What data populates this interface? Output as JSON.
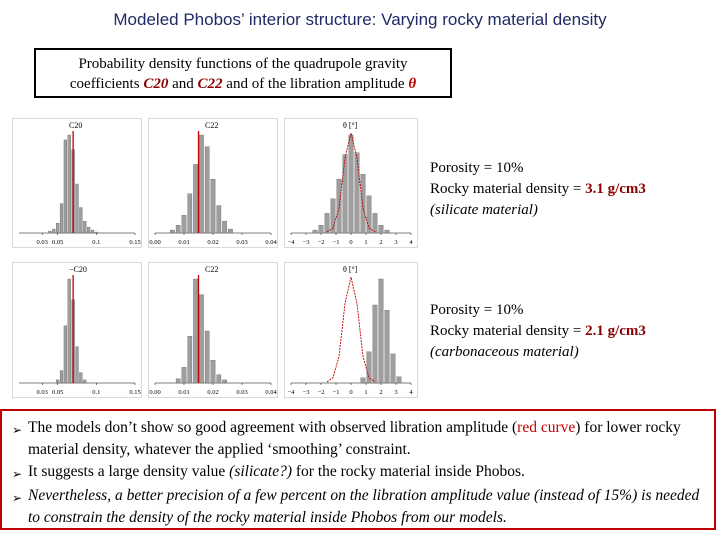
{
  "title": "Modeled Phobos’ interior structure: Varying rocky material density",
  "topbox": {
    "line1": "Probability density functions of the quadrupole gravity",
    "prefix": "coefficients ",
    "c20": "C20",
    "and": " and ",
    "c22": "C22",
    "mid": " and of the libration amplitude ",
    "theta": "θ"
  },
  "rows": [
    {
      "porosity": "Porosity = 10%",
      "density_label": "Rocky material density = ",
      "density_value": "3.1 g/cm3",
      "material": "(silicate material)",
      "panel_titles": [
        "C20",
        "C22",
        "θ [°]"
      ]
    },
    {
      "porosity": "Porosity = 10%",
      "density_label": "Rocky material density = ",
      "density_value": "2.1 g/cm3",
      "material": "(carbonaceous material)",
      "panel_titles": [
        "−C20",
        "C22",
        "θ [°]"
      ]
    }
  ],
  "axes": {
    "c20_ticks": [
      "0.03",
      "0.05",
      "0.1",
      "0.15"
    ],
    "c22_ticks": [
      "0.00",
      "0.01",
      "0.02",
      "0.03",
      "0.04"
    ],
    "theta_ticks": [
      "−4",
      "−3",
      "−2",
      "−1",
      "0",
      "1",
      "2",
      "3",
      "4"
    ]
  },
  "bullets": [
    {
      "a": "The models don’t show so good agreement with observed libration amplitude (",
      "red": "red curve",
      "b": ") for lower rocky material density, whatever the applied ‘smoothing’ constraint."
    },
    {
      "a": "It suggests a large density value ",
      "it": "(silicate?)",
      "b": " for the rocky material inside Phobos."
    },
    {
      "it": "Nevertheless, a better precision of a few percent on the libration amplitude value (instead of 15%) is needed to constrain the density of the rocky material inside Phobos from our models."
    }
  ],
  "colors": {
    "title": "#1f2a66",
    "accent": "#c00000",
    "density": "#8b0000",
    "bar": "#9e9e9e"
  },
  "chart_data": [
    {
      "type": "bar",
      "title": "C20",
      "panel": "row1-col1",
      "xlim": [
        0.0,
        0.15
      ],
      "observed_value": 0.07,
      "bins": [
        0.04,
        0.045,
        0.05,
        0.055,
        0.06,
        0.065,
        0.07,
        0.075,
        0.08,
        0.085,
        0.09,
        0.095,
        0.1
      ],
      "values": [
        2,
        4,
        10,
        30,
        95,
        100,
        85,
        50,
        26,
        12,
        6,
        3,
        1
      ]
    },
    {
      "type": "bar",
      "title": "C22",
      "panel": "row1-col2",
      "xlim": [
        0.0,
        0.04
      ],
      "observed_value": 0.015,
      "bins": [
        0.006,
        0.008,
        0.01,
        0.012,
        0.014,
        0.016,
        0.018,
        0.02,
        0.022,
        0.024,
        0.026
      ],
      "values": [
        3,
        8,
        18,
        40,
        70,
        100,
        88,
        55,
        28,
        12,
        4
      ]
    },
    {
      "type": "bar",
      "title": "θ [°]",
      "panel": "row1-col3",
      "xlim": [
        -4,
        4
      ],
      "bins": [
        -2.4,
        -2.0,
        -1.6,
        -1.2,
        -0.8,
        -0.4,
        0.0,
        0.4,
        0.8,
        1.2,
        1.6,
        2.0,
        2.4
      ],
      "values": [
        3,
        8,
        20,
        35,
        55,
        80,
        100,
        82,
        60,
        38,
        20,
        8,
        3
      ],
      "curve_x": [
        -1.6,
        -1.2,
        -0.8,
        -0.4,
        0.0,
        0.4,
        0.8,
        1.2,
        1.6
      ],
      "curve_y": [
        1,
        5,
        25,
        75,
        100,
        75,
        25,
        5,
        1
      ]
    },
    {
      "type": "bar",
      "title": "−C20",
      "panel": "row2-col1",
      "xlim": [
        0.0,
        0.15
      ],
      "observed_value": 0.07,
      "bins": [
        0.05,
        0.055,
        0.06,
        0.065,
        0.07,
        0.075,
        0.08,
        0.085
      ],
      "values": [
        3,
        12,
        55,
        100,
        80,
        35,
        10,
        3
      ]
    },
    {
      "type": "bar",
      "title": "C22",
      "panel": "row2-col2",
      "xlim": [
        0.0,
        0.04
      ],
      "observed_value": 0.015,
      "bins": [
        0.008,
        0.01,
        0.012,
        0.014,
        0.016,
        0.018,
        0.02,
        0.022,
        0.024
      ],
      "values": [
        4,
        15,
        45,
        100,
        85,
        50,
        22,
        8,
        3
      ]
    },
    {
      "type": "bar",
      "title": "θ [°]",
      "panel": "row2-col3",
      "xlim": [
        -4,
        4
      ],
      "bins": [
        0.8,
        1.2,
        1.6,
        2.0,
        2.4,
        2.8,
        3.2
      ],
      "values": [
        5,
        30,
        75,
        100,
        70,
        28,
        6
      ],
      "curve_x": [
        -1.6,
        -1.2,
        -0.8,
        -0.4,
        0.0,
        0.4,
        0.8,
        1.2,
        1.6
      ],
      "curve_y": [
        1,
        5,
        25,
        75,
        100,
        75,
        25,
        5,
        1
      ]
    }
  ]
}
